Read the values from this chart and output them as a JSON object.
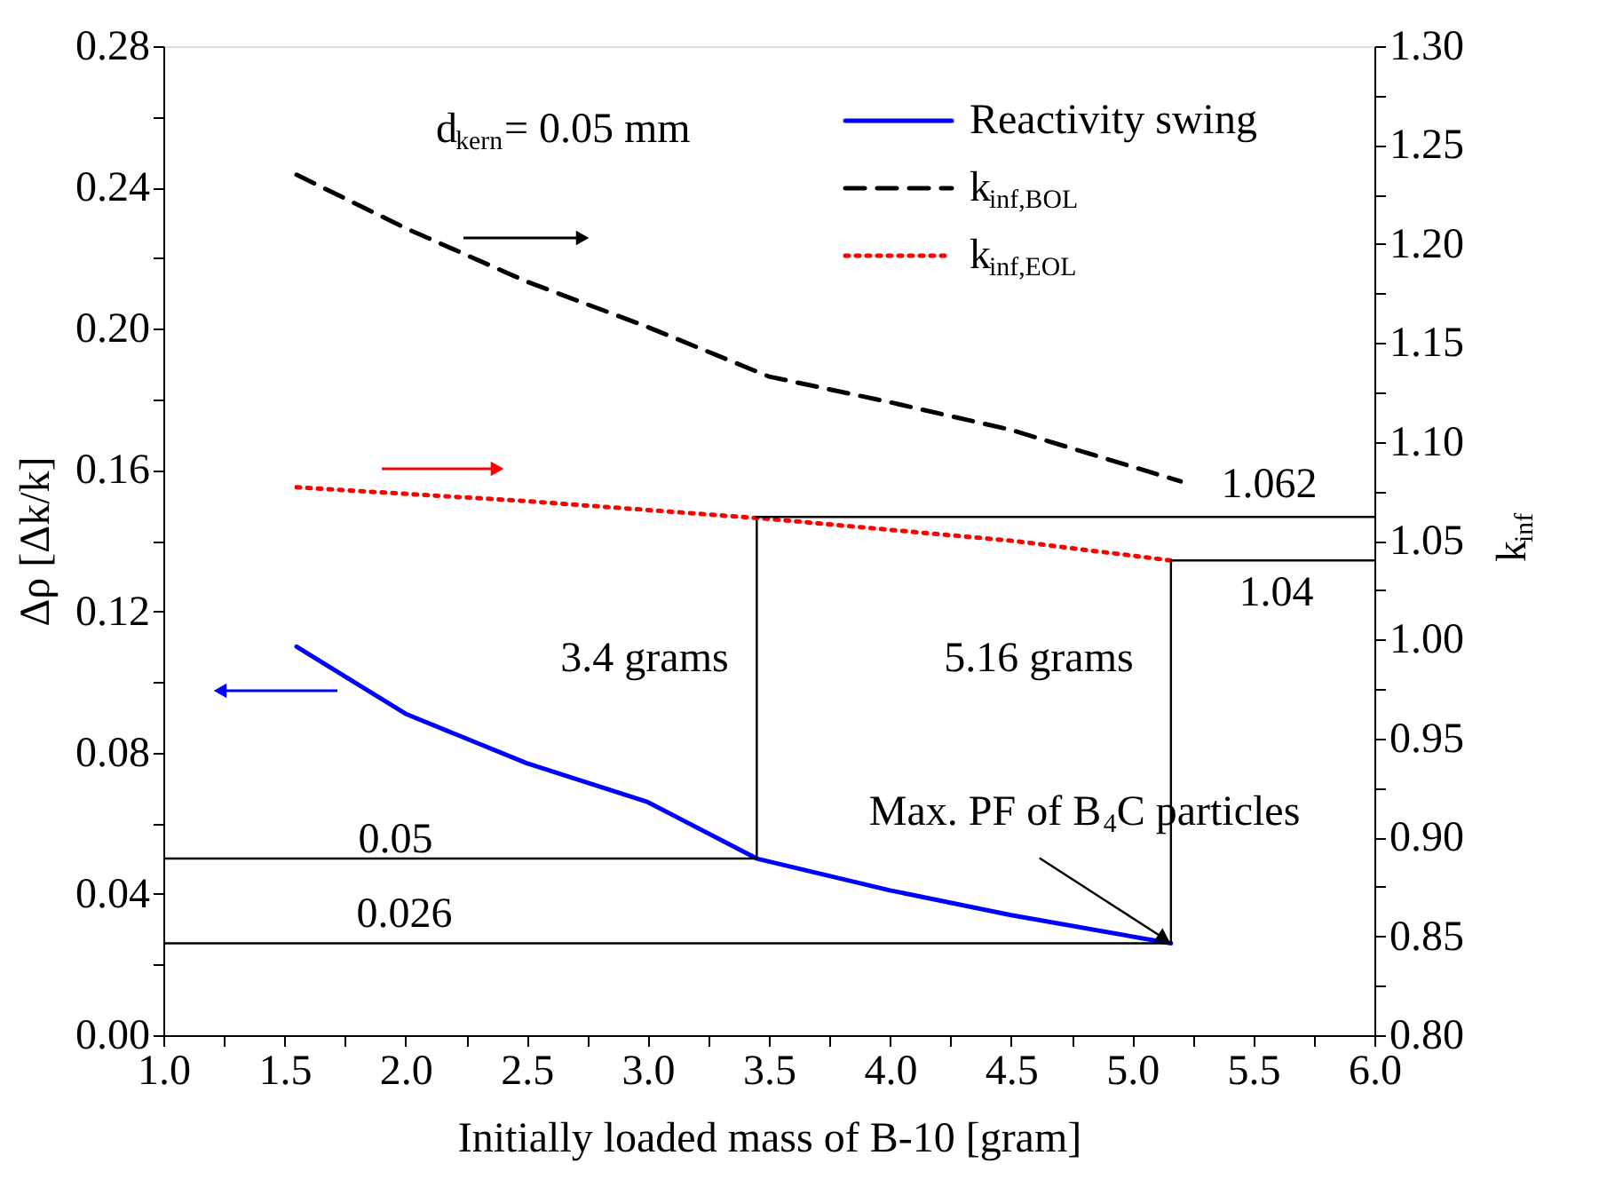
{
  "chart_data": {
    "type": "line",
    "xlabel": "Initially loaded mass of B-10 [gram]",
    "ylabel": "Δρ [Δk/k]",
    "y2label": "k$_{inf}$",
    "xlim": [
      1.0,
      6.0
    ],
    "ylim": [
      0.0,
      0.28
    ],
    "y2lim": [
      0.8,
      1.3
    ],
    "xticks": [
      {
        "value": 1.0,
        "label": "1.0"
      },
      {
        "value": 1.25,
        "label": null
      },
      {
        "value": 1.5,
        "label": "1.5"
      },
      {
        "value": 1.75,
        "label": null
      },
      {
        "value": 2.0,
        "label": "2.0"
      },
      {
        "value": 2.25,
        "label": null
      },
      {
        "value": 2.5,
        "label": "2.5"
      },
      {
        "value": 2.75,
        "label": null
      },
      {
        "value": 3.0,
        "label": "3.0"
      },
      {
        "value": 3.25,
        "label": null
      },
      {
        "value": 3.5,
        "label": "3.5"
      },
      {
        "value": 3.75,
        "label": null
      },
      {
        "value": 4.0,
        "label": "4.0"
      },
      {
        "value": 4.25,
        "label": null
      },
      {
        "value": 4.5,
        "label": "4.5"
      },
      {
        "value": 4.75,
        "label": null
      },
      {
        "value": 5.0,
        "label": "5.0"
      },
      {
        "value": 5.25,
        "label": null
      },
      {
        "value": 5.5,
        "label": "5.5"
      },
      {
        "value": 5.75,
        "label": null
      },
      {
        "value": 6.0,
        "label": "6.0"
      }
    ],
    "yticks": [
      {
        "value": 0.0,
        "label": "0.00"
      },
      {
        "value": 0.02,
        "label": null
      },
      {
        "value": 0.04,
        "label": "0.04"
      },
      {
        "value": 0.06,
        "label": null
      },
      {
        "value": 0.08,
        "label": "0.08"
      },
      {
        "value": 0.1,
        "label": null
      },
      {
        "value": 0.12,
        "label": "0.12"
      },
      {
        "value": 0.14,
        "label": null
      },
      {
        "value": 0.16,
        "label": "0.16"
      },
      {
        "value": 0.18,
        "label": null
      },
      {
        "value": 0.2,
        "label": "0.20"
      },
      {
        "value": 0.22,
        "label": null
      },
      {
        "value": 0.24,
        "label": "0.24"
      },
      {
        "value": 0.26,
        "label": null
      },
      {
        "value": 0.28,
        "label": "0.28"
      }
    ],
    "y2ticks": [
      {
        "value": 0.8,
        "label": "0.80"
      },
      {
        "value": 0.825,
        "label": null
      },
      {
        "value": 0.85,
        "label": "0.85"
      },
      {
        "value": 0.875,
        "label": null
      },
      {
        "value": 0.9,
        "label": "0.90"
      },
      {
        "value": 0.925,
        "label": null
      },
      {
        "value": 0.95,
        "label": "0.95"
      },
      {
        "value": 0.975,
        "label": null
      },
      {
        "value": 1.0,
        "label": "1.00"
      },
      {
        "value": 1.025,
        "label": null
      },
      {
        "value": 1.05,
        "label": "1.05"
      },
      {
        "value": 1.075,
        "label": null
      },
      {
        "value": 1.1,
        "label": "1.10"
      },
      {
        "value": 1.125,
        "label": null
      },
      {
        "value": 1.15,
        "label": "1.15"
      },
      {
        "value": 1.175,
        "label": null
      },
      {
        "value": 1.2,
        "label": "1.20"
      },
      {
        "value": 1.225,
        "label": null
      },
      {
        "value": 1.25,
        "label": "1.25"
      },
      {
        "value": 1.275,
        "label": null
      },
      {
        "value": 1.3,
        "label": "1.30"
      }
    ],
    "legend": "top right",
    "series": [
      {
        "name": "Reactivity swing",
        "color": "#0000ff",
        "line_style": "solid",
        "x": [
          1.55,
          2.0,
          2.5,
          3.0,
          3.45,
          4.0,
          4.5,
          5.16
        ],
        "values": [
          0.11,
          0.091,
          0.077,
          0.066,
          0.05,
          0.041,
          0.034,
          0.026
        ]
      },
      {
        "name": "k$_{inf,BOL}$",
        "color": "#000000",
        "line_style": "dashed",
        "axis": "y2",
        "x": [
          1.55,
          2.0,
          2.5,
          3.0,
          3.5,
          4.0,
          4.5,
          5.2
        ],
        "values": [
          1.235,
          1.208,
          1.181,
          1.158,
          1.133,
          1.12,
          1.106,
          1.08
        ]
      },
      {
        "name": "k$_{inf,EOL}$",
        "color": "#ff0000",
        "line_style": "dotted",
        "axis": "y2",
        "x": [
          1.55,
          2.5,
          3.5,
          4.5,
          5.16
        ],
        "values": [
          1.077,
          1.07,
          1.061,
          1.05,
          1.04
        ]
      },
      {
        "color": "#000000",
        "line_style": "solid",
        "x": [
          1.0,
          3.45,
          3.45
        ],
        "values": [
          0.05,
          0.05,
          0.1467
        ]
      },
      {
        "color": "#000000",
        "line_style": "solid",
        "axis": "y2",
        "x": [
          3.45,
          6.0
        ],
        "values": [
          1.062,
          1.062
        ]
      },
      {
        "color": "#000000",
        "line_style": "solid",
        "x": [
          1.0,
          5.16,
          5.16
        ],
        "values": [
          0.026,
          0.026,
          0.1344
        ]
      },
      {
        "color": "#000000",
        "line_style": "solid",
        "axis": "y2",
        "x": [
          5.16,
          6.0
        ],
        "values": [
          1.04,
          1.04
        ]
      }
    ],
    "annotations": [
      "d$_{kern}$= 0.05 mm",
      "0.05",
      "0.026",
      "3.4 grams",
      "5.16 grams",
      "1.062",
      "1.04",
      {
        "text": "Max. PF of B$_{4}$C particles",
        "x": 5.16,
        "y": 0.026
      }
    ]
  }
}
